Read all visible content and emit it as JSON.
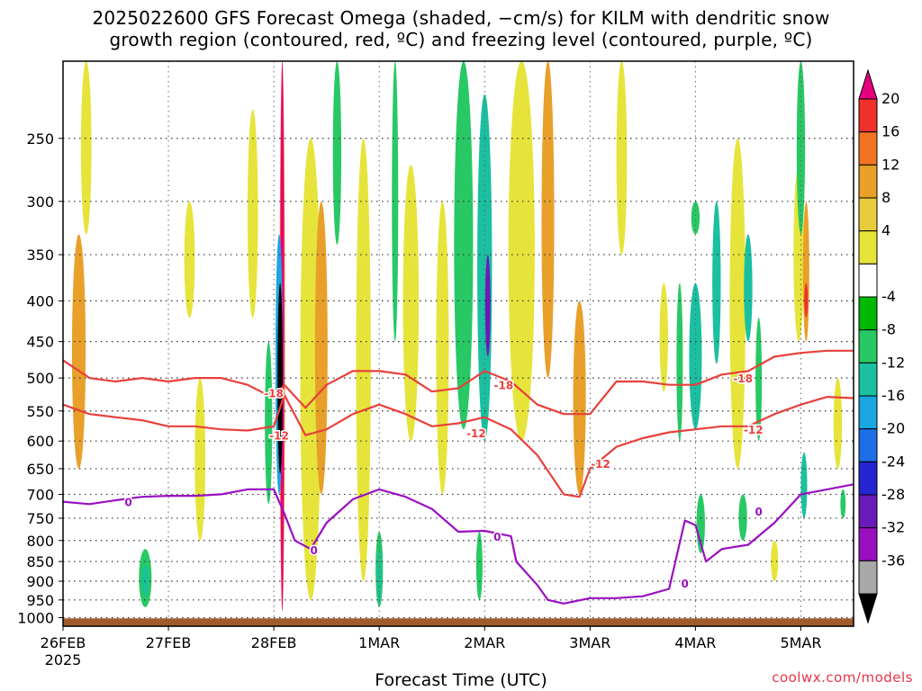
{
  "title": {
    "line1": "2025022600 GFS Forecast Omega (shaded, −cm/s) for KILM with dendritic snow",
    "line2": "growth region (contoured, red, ºC) and freezing level (contoured, purple, ºC)"
  },
  "credit": "coolwx.com/models",
  "chart_data": {
    "type": "heatmap",
    "xlabel": "Forecast Time (UTC)",
    "ylabel": "",
    "x_ticks": [
      "26FEB",
      "27FEB",
      "28FEB",
      "1MAR",
      "2MAR",
      "3MAR",
      "4MAR",
      "5MAR"
    ],
    "x_year": "2025",
    "x_range_days": [
      0,
      7.5
    ],
    "y_scale": "log-pressure",
    "y_ticks": [
      250,
      300,
      350,
      400,
      450,
      500,
      550,
      600,
      650,
      700,
      750,
      800,
      850,
      900,
      950,
      1000
    ],
    "y_range_hpa": [
      200,
      1025
    ],
    "grid": true,
    "colorbar": {
      "labels": [
        "20",
        "16",
        "12",
        "8",
        "4",
        "-4",
        "-8",
        "-12",
        "-16",
        "-20",
        "-24",
        "-28",
        "-32",
        "-36"
      ],
      "colors": [
        "#e6007e",
        "#f0302a",
        "#f27423",
        "#e8a02a",
        "#e8cc3c",
        "#e6e43a",
        "#ffffff",
        "#00b800",
        "#28c864",
        "#1ac0a0",
        "#1aa6e0",
        "#1e6ee6",
        "#2424d0",
        "#6a1ab8",
        "#9a10c0",
        "#a8a8a8",
        "#000000"
      ],
      "color_ranges": [
        ">20",
        "16..20",
        "12..16",
        "8..12",
        "4..8",
        "4..4",
        "-4..4",
        "-8..-4",
        "-12..-8",
        "-16..-12",
        "-20..-16",
        "-24..-20",
        "-28..-24",
        "-32..-28",
        "-36..-32",
        "<-36",
        "extreme"
      ]
    },
    "contours": {
      "dendritic_minus18": {
        "color": "#e8403c",
        "label": "-18",
        "points": [
          [
            0,
            475
          ],
          [
            0.25,
            500
          ],
          [
            0.5,
            505
          ],
          [
            0.75,
            500
          ],
          [
            1.0,
            505
          ],
          [
            1.25,
            500
          ],
          [
            1.5,
            500
          ],
          [
            1.75,
            510
          ],
          [
            2.0,
            530
          ],
          [
            2.1,
            510
          ],
          [
            2.3,
            545
          ],
          [
            2.5,
            510
          ],
          [
            2.75,
            490
          ],
          [
            3.0,
            490
          ],
          [
            3.25,
            495
          ],
          [
            3.5,
            520
          ],
          [
            3.75,
            515
          ],
          [
            4.0,
            490
          ],
          [
            4.25,
            505
          ],
          [
            4.5,
            540
          ],
          [
            4.75,
            555
          ],
          [
            5.0,
            555
          ],
          [
            5.25,
            505
          ],
          [
            5.5,
            505
          ],
          [
            5.75,
            510
          ],
          [
            6.0,
            510
          ],
          [
            6.25,
            495
          ],
          [
            6.5,
            490
          ],
          [
            6.75,
            470
          ],
          [
            7.0,
            465
          ],
          [
            7.25,
            462
          ],
          [
            7.5,
            462
          ]
        ]
      },
      "dendritic_minus12": {
        "color": "#e8403c",
        "label": "-12",
        "points": [
          [
            0,
            540
          ],
          [
            0.25,
            555
          ],
          [
            0.5,
            560
          ],
          [
            0.75,
            565
          ],
          [
            1.0,
            575
          ],
          [
            1.25,
            575
          ],
          [
            1.5,
            580
          ],
          [
            1.75,
            582
          ],
          [
            2.0,
            575
          ],
          [
            2.1,
            525
          ],
          [
            2.3,
            590
          ],
          [
            2.5,
            580
          ],
          [
            2.75,
            555
          ],
          [
            3.0,
            540
          ],
          [
            3.25,
            555
          ],
          [
            3.5,
            575
          ],
          [
            3.75,
            570
          ],
          [
            4.0,
            560
          ],
          [
            4.25,
            580
          ],
          [
            4.5,
            625
          ],
          [
            4.75,
            700
          ],
          [
            4.9,
            705
          ],
          [
            5.0,
            650
          ],
          [
            5.25,
            610
          ],
          [
            5.5,
            595
          ],
          [
            5.75,
            585
          ],
          [
            6.0,
            580
          ],
          [
            6.25,
            575
          ],
          [
            6.5,
            575
          ],
          [
            6.75,
            555
          ],
          [
            7.0,
            540
          ],
          [
            7.25,
            528
          ],
          [
            7.5,
            530
          ]
        ]
      },
      "freezing_level": {
        "color": "#9a10c0",
        "label": "0",
        "points": [
          [
            0,
            715
          ],
          [
            0.25,
            720
          ],
          [
            0.5,
            712
          ],
          [
            0.75,
            705
          ],
          [
            1.0,
            703
          ],
          [
            1.25,
            703
          ],
          [
            1.5,
            700
          ],
          [
            1.75,
            690
          ],
          [
            2.0,
            690
          ],
          [
            2.1,
            740
          ],
          [
            2.2,
            800
          ],
          [
            2.35,
            820
          ],
          [
            2.5,
            760
          ],
          [
            2.75,
            710
          ],
          [
            3.0,
            690
          ],
          [
            3.25,
            705
          ],
          [
            3.5,
            730
          ],
          [
            3.75,
            780
          ],
          [
            4.0,
            778
          ],
          [
            4.25,
            790
          ],
          [
            4.3,
            850
          ],
          [
            4.5,
            910
          ],
          [
            4.6,
            950
          ],
          [
            4.75,
            960
          ],
          [
            5.0,
            945
          ],
          [
            5.25,
            945
          ],
          [
            5.5,
            940
          ],
          [
            5.75,
            920
          ],
          [
            5.9,
            755
          ],
          [
            6.0,
            765
          ],
          [
            6.1,
            850
          ],
          [
            6.25,
            820
          ],
          [
            6.5,
            810
          ],
          [
            6.75,
            760
          ],
          [
            7.0,
            700
          ],
          [
            7.25,
            690
          ],
          [
            7.5,
            680
          ]
        ]
      }
    },
    "contour_labels": [
      {
        "text": "-18",
        "x": 2.0,
        "y": 522,
        "color": "#e8403c"
      },
      {
        "text": "-12",
        "x": 2.05,
        "y": 590,
        "color": "#e8403c"
      },
      {
        "text": "-18",
        "x": 4.18,
        "y": 510,
        "color": "#e8403c"
      },
      {
        "text": "-12",
        "x": 3.92,
        "y": 586,
        "color": "#e8403c"
      },
      {
        "text": "-12",
        "x": 5.1,
        "y": 640,
        "color": "#e8403c"
      },
      {
        "text": "-18",
        "x": 6.45,
        "y": 500,
        "color": "#e8403c"
      },
      {
        "text": "-12",
        "x": 6.55,
        "y": 580,
        "color": "#e8403c"
      },
      {
        "text": "0",
        "x": 0.62,
        "y": 715,
        "color": "#9a10c0"
      },
      {
        "text": "0",
        "x": 2.38,
        "y": 822,
        "color": "#9a10c0"
      },
      {
        "text": "0",
        "x": 4.12,
        "y": 790,
        "color": "#9a10c0"
      },
      {
        "text": "0",
        "x": 5.9,
        "y": 905,
        "color": "#9a10c0"
      },
      {
        "text": "0",
        "x": 6.6,
        "y": 735,
        "color": "#9a10c0"
      }
    ],
    "omega_blobs": [
      {
        "x": 0.15,
        "p0": 330,
        "p1": 650,
        "w": 0.13,
        "v": 8
      },
      {
        "x": 0.22,
        "p0": 200,
        "p1": 330,
        "w": 0.1,
        "v": 4
      },
      {
        "x": 0.78,
        "p0": 820,
        "p1": 970,
        "w": 0.12,
        "v": -8
      },
      {
        "x": 0.78,
        "p0": 860,
        "p1": 940,
        "w": 0.06,
        "v": -12
      },
      {
        "x": 1.2,
        "p0": 300,
        "p1": 420,
        "w": 0.1,
        "v": 4
      },
      {
        "x": 1.3,
        "p0": 500,
        "p1": 800,
        "w": 0.1,
        "v": 4
      },
      {
        "x": 1.8,
        "p0": 230,
        "p1": 420,
        "w": 0.1,
        "v": 4
      },
      {
        "x": 1.95,
        "p0": 450,
        "p1": 720,
        "w": 0.07,
        "v": -8
      },
      {
        "x": 2.08,
        "p0": 200,
        "p1": 980,
        "w": 0.05,
        "v": 12
      },
      {
        "x": 2.08,
        "p0": 200,
        "p1": 980,
        "w": 0.03,
        "v": 20
      },
      {
        "x": 2.05,
        "p0": 330,
        "p1": 700,
        "w": 0.07,
        "v": -16
      },
      {
        "x": 2.06,
        "p0": 380,
        "p1": 660,
        "w": 0.05,
        "v": -40
      },
      {
        "x": 2.35,
        "p0": 250,
        "p1": 950,
        "w": 0.2,
        "v": 4
      },
      {
        "x": 2.45,
        "p0": 300,
        "p1": 700,
        "w": 0.12,
        "v": 8
      },
      {
        "x": 2.6,
        "p0": 200,
        "p1": 340,
        "w": 0.08,
        "v": -8
      },
      {
        "x": 2.85,
        "p0": 250,
        "p1": 900,
        "w": 0.14,
        "v": 4
      },
      {
        "x": 3.0,
        "p0": 780,
        "p1": 970,
        "w": 0.07,
        "v": -8
      },
      {
        "x": 3.0,
        "p0": 820,
        "p1": 960,
        "w": 0.04,
        "v": -12
      },
      {
        "x": 3.15,
        "p0": 200,
        "p1": 450,
        "w": 0.06,
        "v": -8
      },
      {
        "x": 3.3,
        "p0": 270,
        "p1": 600,
        "w": 0.15,
        "v": 4
      },
      {
        "x": 3.6,
        "p0": 300,
        "p1": 700,
        "w": 0.12,
        "v": 4
      },
      {
        "x": 3.8,
        "p0": 200,
        "p1": 580,
        "w": 0.18,
        "v": -8
      },
      {
        "x": 4.0,
        "p0": 220,
        "p1": 600,
        "w": 0.14,
        "v": -12
      },
      {
        "x": 4.03,
        "p0": 350,
        "p1": 470,
        "w": 0.05,
        "v": -28
      },
      {
        "x": 3.95,
        "p0": 780,
        "p1": 950,
        "w": 0.06,
        "v": -8
      },
      {
        "x": 4.35,
        "p0": 200,
        "p1": 600,
        "w": 0.25,
        "v": 4
      },
      {
        "x": 4.6,
        "p0": 200,
        "p1": 500,
        "w": 0.12,
        "v": 8
      },
      {
        "x": 4.9,
        "p0": 400,
        "p1": 700,
        "w": 0.12,
        "v": 8
      },
      {
        "x": 5.3,
        "p0": 200,
        "p1": 350,
        "w": 0.1,
        "v": 4
      },
      {
        "x": 5.7,
        "p0": 380,
        "p1": 520,
        "w": 0.08,
        "v": 4
      },
      {
        "x": 5.85,
        "p0": 380,
        "p1": 600,
        "w": 0.06,
        "v": -8
      },
      {
        "x": 6.0,
        "p0": 380,
        "p1": 580,
        "w": 0.12,
        "v": -12
      },
      {
        "x": 6.0,
        "p0": 300,
        "p1": 330,
        "w": 0.08,
        "v": -8
      },
      {
        "x": 6.05,
        "p0": 700,
        "p1": 830,
        "w": 0.08,
        "v": -8
      },
      {
        "x": 6.2,
        "p0": 300,
        "p1": 480,
        "w": 0.08,
        "v": -12
      },
      {
        "x": 6.4,
        "p0": 250,
        "p1": 650,
        "w": 0.15,
        "v": 4
      },
      {
        "x": 6.45,
        "p0": 700,
        "p1": 800,
        "w": 0.08,
        "v": -8
      },
      {
        "x": 6.5,
        "p0": 330,
        "p1": 450,
        "w": 0.08,
        "v": -12
      },
      {
        "x": 6.6,
        "p0": 420,
        "p1": 600,
        "w": 0.06,
        "v": -8
      },
      {
        "x": 6.75,
        "p0": 800,
        "p1": 900,
        "w": 0.07,
        "v": 4
      },
      {
        "x": 6.98,
        "p0": 270,
        "p1": 450,
        "w": 0.1,
        "v": 4
      },
      {
        "x": 7.0,
        "p0": 200,
        "p1": 330,
        "w": 0.08,
        "v": -8
      },
      {
        "x": 7.05,
        "p0": 300,
        "p1": 450,
        "w": 0.06,
        "v": 8
      },
      {
        "x": 7.05,
        "p0": 380,
        "p1": 420,
        "w": 0.03,
        "v": 16
      },
      {
        "x": 7.03,
        "p0": 620,
        "p1": 750,
        "w": 0.06,
        "v": -12
      },
      {
        "x": 7.35,
        "p0": 500,
        "p1": 650,
        "w": 0.08,
        "v": 4
      },
      {
        "x": 7.4,
        "p0": 690,
        "p1": 750,
        "w": 0.05,
        "v": -8
      }
    ],
    "surface_band": {
      "color": "#a05a2c",
      "p0": 1002,
      "p1": 1025
    }
  }
}
